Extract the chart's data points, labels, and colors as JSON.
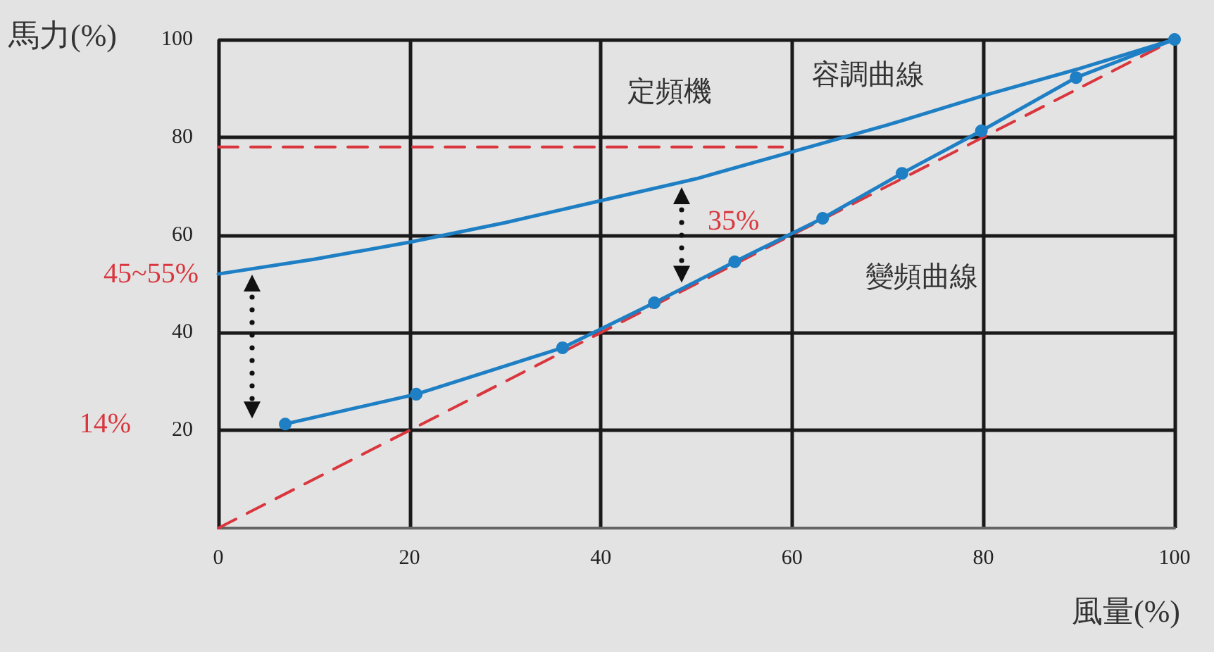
{
  "chart_data": {
    "type": "line",
    "xlabel": "風量(%)",
    "ylabel": "馬力(%)",
    "xlim": [
      0,
      100
    ],
    "ylim": [
      0,
      100
    ],
    "xticks": [
      0,
      20,
      40,
      60,
      80,
      100
    ],
    "yticks": [
      20,
      40,
      60,
      80,
      100
    ],
    "grid": true,
    "series": [
      {
        "name": "容調曲線",
        "color": "#1f7fc4",
        "marker": "none",
        "line_style": "solid",
        "x": [
          0,
          10,
          20,
          30,
          40,
          50,
          60,
          70,
          80,
          90,
          100
        ],
        "values": [
          52,
          55,
          58.5,
          62.5,
          67,
          71.5,
          77,
          82.5,
          88.5,
          94,
          100
        ]
      },
      {
        "name": "變頻曲線",
        "color": "#1f7fc4",
        "marker": "circle",
        "line_style": "solid",
        "x": [
          7,
          20.7,
          36,
          45.6,
          54,
          63.2,
          71.5,
          79.8,
          89.7,
          100
        ],
        "values": [
          21.3,
          27.4,
          36.9,
          46.1,
          54.5,
          63.4,
          72.6,
          81.3,
          92.2,
          100
        ]
      },
      {
        "color": "#d9363e",
        "marker": "none",
        "line_style": "dashed",
        "x": [
          0,
          100
        ],
        "values": [
          0,
          100
        ]
      },
      {
        "name": "定頻機",
        "color": "#d9363e",
        "marker": "none",
        "line_style": "dashed",
        "x": [
          0,
          59
        ],
        "values": [
          78,
          78
        ]
      }
    ],
    "annotations": [
      {
        "text": "45~55%",
        "x": 0,
        "y": 52
      },
      "14%",
      {
        "text": "35%",
        "x": 50,
        "y": 71.5
      }
    ]
  }
}
